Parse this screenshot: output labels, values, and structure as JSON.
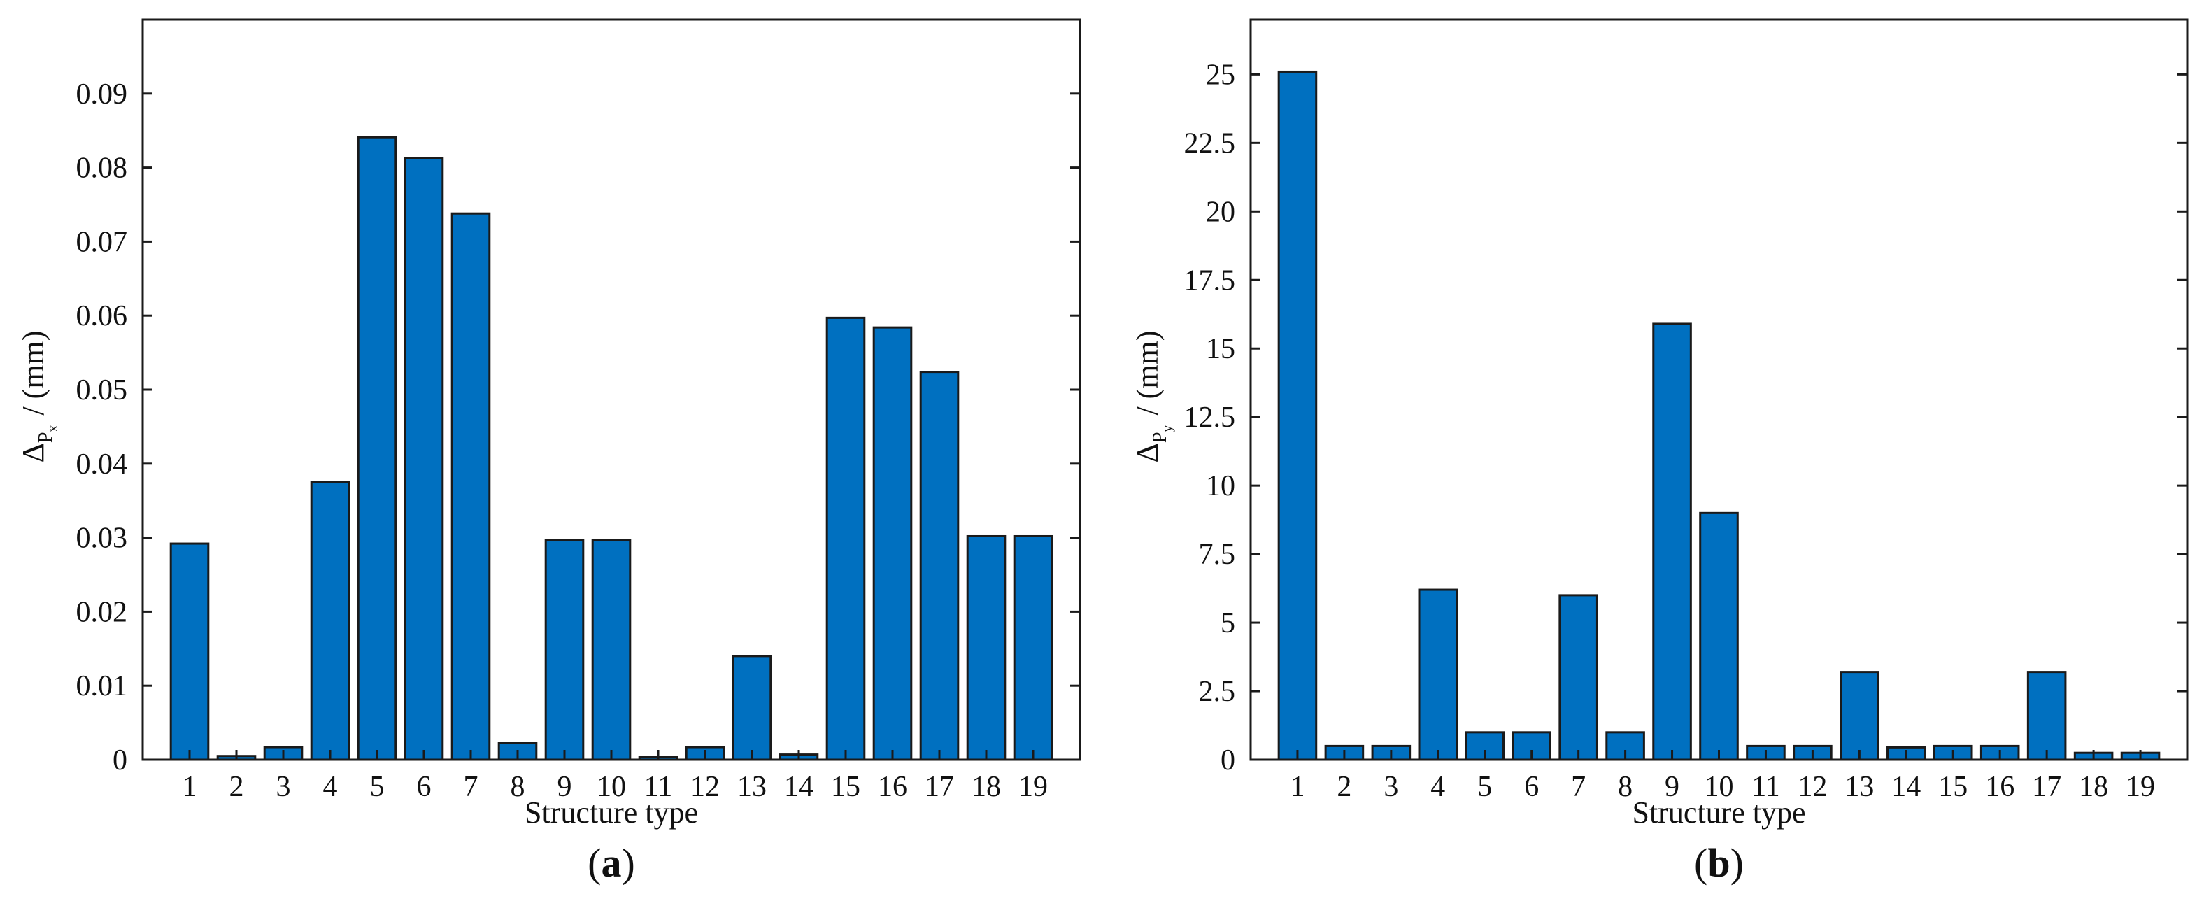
{
  "colors": {
    "bar": "#0070C0",
    "bar_edge": "#1a1a1a",
    "axis": "#1a1a1a"
  },
  "chart_data": [
    {
      "type": "bar",
      "panel_label": "a",
      "xlabel": "Structure type",
      "ylabel_symbol": "Δ",
      "ylabel_sub": "P",
      "ylabel_subsub": "x",
      "ylabel_unit": "/ (mm)",
      "ylim": [
        0,
        0.1
      ],
      "yticks": [
        "0",
        "0.01",
        "0.02",
        "0.03",
        "0.04",
        "0.05",
        "0.06",
        "0.07",
        "0.08",
        "0.09"
      ],
      "ytick_values": [
        0,
        0.01,
        0.02,
        0.03,
        0.04,
        0.05,
        0.06,
        0.07,
        0.08,
        0.09
      ],
      "categories": [
        "1",
        "2",
        "3",
        "4",
        "5",
        "6",
        "7",
        "8",
        "9",
        "10",
        "11",
        "12",
        "13",
        "14",
        "15",
        "16",
        "17",
        "18",
        "19"
      ],
      "values": [
        0.0292,
        0.0005,
        0.0017,
        0.0375,
        0.0841,
        0.0813,
        0.0738,
        0.0023,
        0.0297,
        0.0297,
        0.0004,
        0.0017,
        0.014,
        0.0007,
        0.0597,
        0.0584,
        0.0524,
        0.0302,
        0.0302
      ]
    },
    {
      "type": "bar",
      "panel_label": "b",
      "xlabel": "Structure type",
      "ylabel_symbol": "Δ",
      "ylabel_sub": "P",
      "ylabel_subsub": "y",
      "ylabel_unit": "/ (mm)",
      "ylim": [
        0,
        27
      ],
      "yticks": [
        "0",
        "2.5",
        "5",
        "7.5",
        "10",
        "12.5",
        "15",
        "17.5",
        "20",
        "22.5",
        "25"
      ],
      "ytick_values": [
        0,
        2.5,
        5,
        7.5,
        10,
        12.5,
        15,
        17.5,
        20,
        22.5,
        25
      ],
      "categories": [
        "1",
        "2",
        "3",
        "4",
        "5",
        "6",
        "7",
        "8",
        "9",
        "10",
        "11",
        "12",
        "13",
        "14",
        "15",
        "16",
        "17",
        "18",
        "19"
      ],
      "values": [
        25.1,
        0.5,
        0.5,
        6.2,
        1.0,
        1.0,
        6.0,
        1.0,
        15.9,
        9.0,
        0.5,
        0.5,
        3.2,
        0.45,
        0.5,
        0.5,
        3.2,
        0.25,
        0.25
      ]
    }
  ]
}
